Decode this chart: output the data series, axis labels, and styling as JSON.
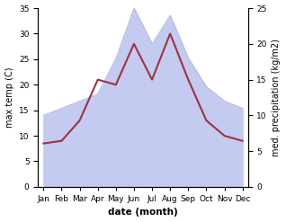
{
  "months": [
    "Jan",
    "Feb",
    "Mar",
    "Apr",
    "May",
    "Jun",
    "Jul",
    "Aug",
    "Sep",
    "Oct",
    "Nov",
    "Dec"
  ],
  "month_x": [
    0,
    1,
    2,
    3,
    4,
    5,
    6,
    7,
    8,
    9,
    10,
    11
  ],
  "max_temp": [
    8.5,
    9.0,
    13.0,
    21.0,
    20.0,
    28.0,
    21.0,
    30.0,
    21.0,
    13.0,
    10.0,
    9.0
  ],
  "precipitation": [
    10.0,
    11.0,
    12.0,
    13.0,
    18.0,
    25.0,
    20.0,
    24.0,
    18.0,
    14.0,
    12.0,
    11.0
  ],
  "temp_color": "#993344",
  "precip_fill_color": "#c5caf0",
  "precip_line_color": "#b0b8e8",
  "left_ylim": [
    0,
    35
  ],
  "right_ylim": [
    0,
    25
  ],
  "left_yticks": [
    0,
    5,
    10,
    15,
    20,
    25,
    30,
    35
  ],
  "right_yticks": [
    0,
    5,
    10,
    15,
    20,
    25
  ],
  "xlabel": "date (month)",
  "ylabel_left": "max temp (C)",
  "ylabel_right": "med. precipitation (kg/m2)",
  "bg_color": "#ffffff",
  "label_fontsize": 7,
  "tick_fontsize": 6.5,
  "xlabel_fontsize": 7.5
}
